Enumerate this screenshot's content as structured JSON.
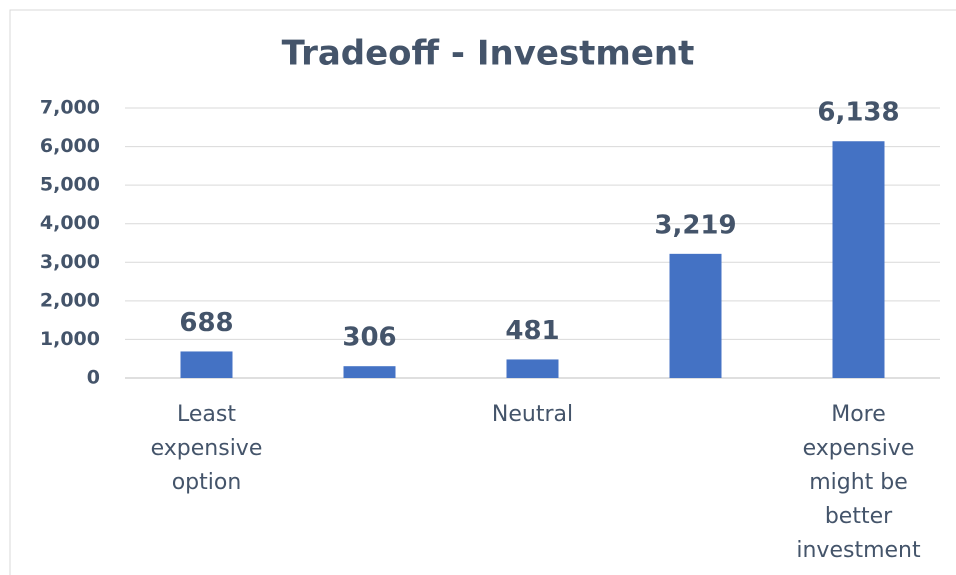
{
  "chart_data": {
    "type": "bar",
    "title": "Tradeoff - Investment",
    "categories": [
      "Least expensive option",
      null,
      "Neutral",
      null,
      "More expensive might be better investment"
    ],
    "values": [
      688,
      306,
      481,
      3219,
      6138
    ],
    "value_labels": [
      "688",
      "306",
      "481",
      "3,219",
      "6,138"
    ],
    "color": "#4472c4",
    "ylim": [
      0,
      7000
    ],
    "yticks": [
      0,
      {
        "value": 1000,
        "label": "1,000"
      },
      {
        "value": 2000,
        "label": "2,000"
      },
      {
        "value": 3000,
        "label": "3,000"
      },
      {
        "value": 4000,
        "label": "4,000"
      },
      {
        "value": 5000,
        "label": "5,000"
      },
      {
        "value": 6000,
        "label": "6,000"
      },
      {
        "value": 7000,
        "label": "7,000"
      }
    ],
    "grid": true
  }
}
